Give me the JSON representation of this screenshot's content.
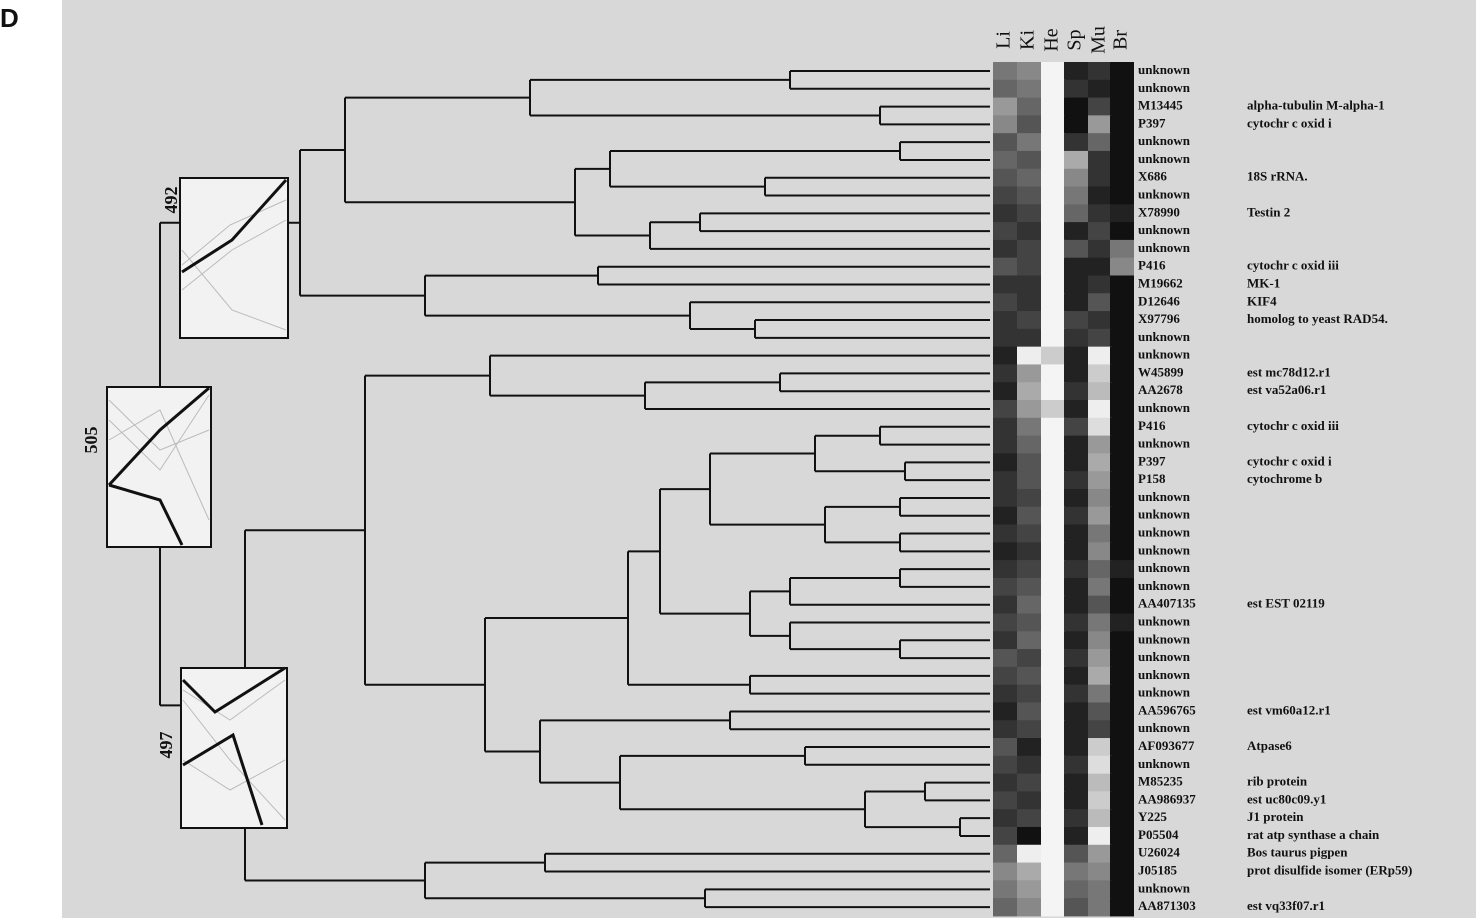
{
  "panel": "D",
  "columns": [
    "Li",
    "Ki",
    "He",
    "Sp",
    "Mu",
    "Br"
  ],
  "clusters": [
    {
      "label": "492"
    },
    {
      "label": "505"
    },
    {
      "label": "497"
    }
  ],
  "rows": [
    {
      "id": "unknown",
      "cells": [
        "#777",
        "#888",
        "#f4f4f4",
        "#222",
        "#333",
        "#111"
      ]
    },
    {
      "id": "unknown",
      "cells": [
        "#666",
        "#777",
        "#f4f4f4",
        "#333",
        "#222",
        "#111"
      ]
    },
    {
      "id": "M13445",
      "description": "alpha-tubulin M-alpha-1",
      "cells": [
        "#999",
        "#666",
        "#f4f4f4",
        "#111",
        "#444",
        "#111"
      ]
    },
    {
      "id": "P397",
      "description": "cytochr c oxid i",
      "cells": [
        "#888",
        "#555",
        "#f4f4f4",
        "#111",
        "#999",
        "#111"
      ]
    },
    {
      "id": "unknown",
      "cells": [
        "#555",
        "#777",
        "#f4f4f4",
        "#333",
        "#666",
        "#111"
      ]
    },
    {
      "id": "unknown",
      "cells": [
        "#666",
        "#555",
        "#f4f4f4",
        "#aaa",
        "#333",
        "#111"
      ]
    },
    {
      "id": "X686",
      "description": "18S rRNA.",
      "cells": [
        "#555",
        "#666",
        "#f4f4f4",
        "#888",
        "#333",
        "#111"
      ]
    },
    {
      "id": "unknown",
      "cells": [
        "#444",
        "#555",
        "#f4f4f4",
        "#777",
        "#222",
        "#111"
      ]
    },
    {
      "id": "X78990",
      "description": "Testin 2",
      "cells": [
        "#333",
        "#444",
        "#f4f4f4",
        "#666",
        "#333",
        "#222"
      ]
    },
    {
      "id": "unknown",
      "cells": [
        "#444",
        "#333",
        "#f4f4f4",
        "#222",
        "#444",
        "#111"
      ]
    },
    {
      "id": "unknown",
      "cells": [
        "#333",
        "#444",
        "#f4f4f4",
        "#555",
        "#333",
        "#777"
      ]
    },
    {
      "id": "P416",
      "description": "cytochr c oxid iii",
      "cells": [
        "#555",
        "#444",
        "#f4f4f4",
        "#222",
        "#222",
        "#888"
      ]
    },
    {
      "id": "M19662",
      "description": "MK-1",
      "cells": [
        "#333",
        "#333",
        "#f4f4f4",
        "#222",
        "#333",
        "#111"
      ]
    },
    {
      "id": "D12646",
      "description": "KIF4",
      "cells": [
        "#444",
        "#333",
        "#f4f4f4",
        "#222",
        "#555",
        "#111"
      ]
    },
    {
      "id": "X97796",
      "description": "homolog to yeast RAD54.",
      "cells": [
        "#333",
        "#444",
        "#f4f4f4",
        "#444",
        "#333",
        "#111"
      ]
    },
    {
      "id": "unknown",
      "cells": [
        "#333",
        "#333",
        "#f4f4f4",
        "#333",
        "#444",
        "#111"
      ]
    },
    {
      "id": "unknown",
      "cells": [
        "#222",
        "#eee",
        "#ccc",
        "#222",
        "#eee",
        "#111"
      ]
    },
    {
      "id": "W45899",
      "description": "est mc78d12.r1",
      "cells": [
        "#333",
        "#999",
        "#f4f4f4",
        "#222",
        "#ccc",
        "#111"
      ]
    },
    {
      "id": "AA2678",
      "description": "est va52a06.r1",
      "cells": [
        "#222",
        "#aaa",
        "#f4f4f4",
        "#333",
        "#bbb",
        "#111"
      ]
    },
    {
      "id": "unknown",
      "cells": [
        "#444",
        "#999",
        "#ccc",
        "#222",
        "#eee",
        "#111"
      ]
    },
    {
      "id": "P416",
      "description": "cytochr c oxid iii",
      "cells": [
        "#333",
        "#777",
        "#f4f4f4",
        "#444",
        "#ddd",
        "#111"
      ]
    },
    {
      "id": "unknown",
      "cells": [
        "#333",
        "#666",
        "#f4f4f4",
        "#222",
        "#999",
        "#111"
      ]
    },
    {
      "id": "P397",
      "description": "cytochr c oxid i",
      "cells": [
        "#222",
        "#555",
        "#f4f4f4",
        "#222",
        "#aaa",
        "#111"
      ]
    },
    {
      "id": "P158",
      "description": "cytochrome b",
      "cells": [
        "#333",
        "#555",
        "#f4f4f4",
        "#333",
        "#999",
        "#111"
      ]
    },
    {
      "id": "unknown",
      "cells": [
        "#333",
        "#444",
        "#f4f4f4",
        "#222",
        "#888",
        "#111"
      ]
    },
    {
      "id": "unknown",
      "cells": [
        "#222",
        "#555",
        "#f4f4f4",
        "#333",
        "#999",
        "#111"
      ]
    },
    {
      "id": "unknown",
      "cells": [
        "#333",
        "#444",
        "#f4f4f4",
        "#222",
        "#777",
        "#111"
      ]
    },
    {
      "id": "unknown",
      "cells": [
        "#222",
        "#333",
        "#f4f4f4",
        "#222",
        "#888",
        "#111"
      ]
    },
    {
      "id": "unknown",
      "cells": [
        "#333",
        "#444",
        "#f4f4f4",
        "#333",
        "#666",
        "#222"
      ]
    },
    {
      "id": "unknown",
      "cells": [
        "#444",
        "#555",
        "#f4f4f4",
        "#222",
        "#777",
        "#111"
      ]
    },
    {
      "id": "AA407135",
      "description": "est EST 02119",
      "cells": [
        "#333",
        "#666",
        "#f4f4f4",
        "#222",
        "#555",
        "#111"
      ]
    },
    {
      "id": "unknown",
      "cells": [
        "#444",
        "#555",
        "#f4f4f4",
        "#333",
        "#777",
        "#222"
      ]
    },
    {
      "id": "unknown",
      "cells": [
        "#333",
        "#666",
        "#f4f4f4",
        "#222",
        "#888",
        "#111"
      ]
    },
    {
      "id": "unknown",
      "cells": [
        "#555",
        "#444",
        "#f4f4f4",
        "#333",
        "#999",
        "#111"
      ]
    },
    {
      "id": "unknown",
      "cells": [
        "#444",
        "#555",
        "#f4f4f4",
        "#222",
        "#aaa",
        "#111"
      ]
    },
    {
      "id": "unknown",
      "cells": [
        "#333",
        "#444",
        "#f4f4f4",
        "#333",
        "#777",
        "#111"
      ]
    },
    {
      "id": "AA596765",
      "description": "est vm60a12.r1",
      "cells": [
        "#222",
        "#555",
        "#f4f4f4",
        "#222",
        "#555",
        "#111"
      ]
    },
    {
      "id": "unknown",
      "cells": [
        "#333",
        "#444",
        "#f4f4f4",
        "#222",
        "#444",
        "#111"
      ]
    },
    {
      "id": "AF093677",
      "description": "Atpase6",
      "cells": [
        "#555",
        "#222",
        "#f4f4f4",
        "#222",
        "#ccc",
        "#111"
      ]
    },
    {
      "id": "unknown",
      "cells": [
        "#444",
        "#333",
        "#f4f4f4",
        "#333",
        "#ddd",
        "#111"
      ]
    },
    {
      "id": "M85235",
      "description": "rib protein",
      "cells": [
        "#333",
        "#444",
        "#f4f4f4",
        "#222",
        "#bbb",
        "#111"
      ]
    },
    {
      "id": "AA986937",
      "description": "est uc80c09.y1",
      "cells": [
        "#444",
        "#333",
        "#f4f4f4",
        "#222",
        "#ccc",
        "#111"
      ]
    },
    {
      "id": "Y225",
      "description": "J1 protein",
      "cells": [
        "#333",
        "#444",
        "#f4f4f4",
        "#333",
        "#bbb",
        "#111"
      ]
    },
    {
      "id": "P05504",
      "description": "rat atp synthase a chain",
      "cells": [
        "#444",
        "#111",
        "#f4f4f4",
        "#222",
        "#eee",
        "#111"
      ]
    },
    {
      "id": "U26024",
      "description": "Bos taurus pigpen",
      "cells": [
        "#666",
        "#eee",
        "#f4f4f4",
        "#555",
        "#999",
        "#111"
      ]
    },
    {
      "id": "J05185",
      "description": "prot disulfide isomer (ERp59)",
      "cells": [
        "#888",
        "#aaa",
        "#f4f4f4",
        "#777",
        "#888",
        "#111"
      ]
    },
    {
      "id": "unknown",
      "cells": [
        "#777",
        "#999",
        "#f4f4f4",
        "#666",
        "#777",
        "#111"
      ]
    },
    {
      "id": "AA871303",
      "description": "est vq33f07.r1",
      "cells": [
        "#666",
        "#888",
        "#f4f4f4",
        "#555",
        "#777",
        "#111"
      ]
    }
  ]
}
